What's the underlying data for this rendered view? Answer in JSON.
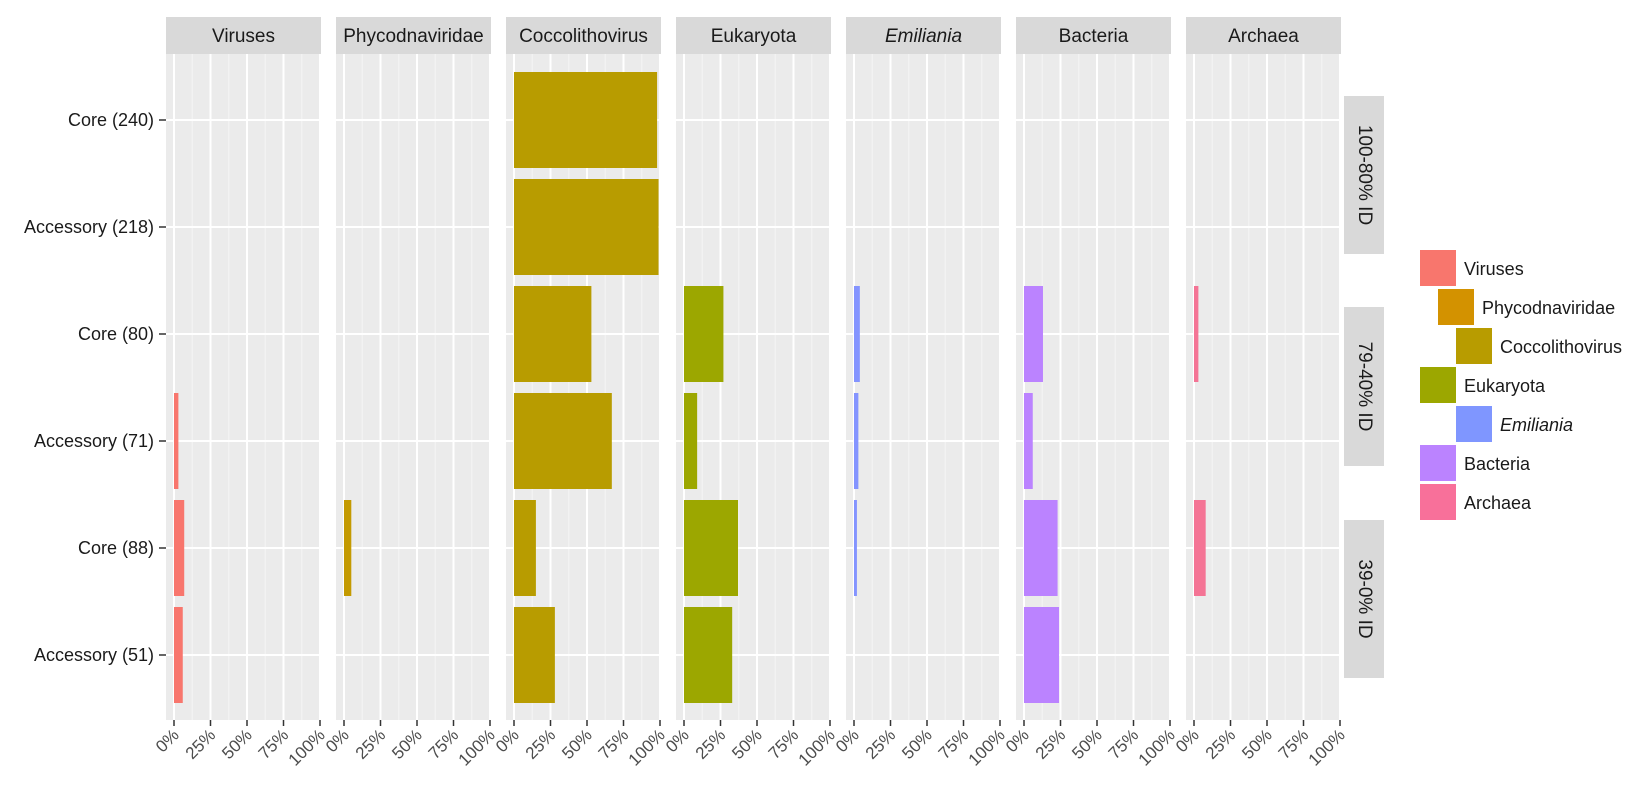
{
  "chart_data": {
    "type": "bar",
    "orientation": "horizontal",
    "facet_columns": [
      {
        "key": "viruses",
        "label": "Viruses",
        "italic": false
      },
      {
        "key": "phyco",
        "label": "Phycodnaviridae",
        "italic": false
      },
      {
        "key": "cocco",
        "label": "Coccolithovirus",
        "italic": false
      },
      {
        "key": "euk",
        "label": "Eukaryota",
        "italic": false
      },
      {
        "key": "emil",
        "label": "Emiliania",
        "italic": true
      },
      {
        "key": "bact",
        "label": "Bacteria",
        "italic": false
      },
      {
        "key": "arch",
        "label": "Archaea",
        "italic": false
      }
    ],
    "facet_rows": [
      {
        "label": "100-80% ID",
        "categories": [
          "Core (240)",
          "Accessory (218)"
        ]
      },
      {
        "label": "79-40% ID",
        "categories": [
          "Core (80)",
          "Accessory (71)"
        ]
      },
      {
        "label": "39-0% ID",
        "categories": [
          "Core (88)",
          "Accessory (51)"
        ]
      }
    ],
    "categories": [
      "Core (240)",
      "Accessory (218)",
      "Core (80)",
      "Accessory (71)",
      "Core (88)",
      "Accessory (51)"
    ],
    "x_ticks": [
      "0%",
      "25%",
      "50%",
      "75%",
      "100%"
    ],
    "xlim": [
      0,
      100
    ],
    "units": "%",
    "series": [
      {
        "name": "Viruses",
        "color": "#F8766D",
        "values": [
          0,
          0,
          0,
          3,
          7,
          6
        ]
      },
      {
        "name": "Phycodnaviridae",
        "color": "#C49A00",
        "values": [
          0,
          0,
          0,
          0,
          5,
          0
        ]
      },
      {
        "name": "Coccolithovirus",
        "color": "#B89C00",
        "values": [
          98,
          99,
          53,
          67,
          15,
          28
        ]
      },
      {
        "name": "Eukaryota",
        "color": "#9CA700",
        "values": [
          0,
          0,
          27,
          9,
          37,
          33
        ]
      },
      {
        "name": "Emiliania",
        "color": "#8494FF",
        "values": [
          0,
          0,
          4,
          3,
          2,
          0
        ]
      },
      {
        "name": "Bacteria",
        "color": "#BB83FF",
        "values": [
          0,
          0,
          13,
          6,
          23,
          24
        ]
      },
      {
        "name": "Archaea",
        "color": "#F47495",
        "values": [
          0,
          0,
          3,
          0,
          8,
          0
        ]
      }
    ],
    "legend": {
      "position": "right",
      "items": [
        {
          "label": "Viruses",
          "color": "#F8766D",
          "italic": false
        },
        {
          "label": "Phycodnaviridae",
          "color": "#D39200",
          "italic": false
        },
        {
          "label": "Coccolithovirus",
          "color": "#B89C00",
          "italic": false
        },
        {
          "label": "Eukaryota",
          "color": "#9CA700",
          "italic": false
        },
        {
          "label": "Emiliania",
          "color": "#7F96FF",
          "italic": true
        },
        {
          "label": "Bacteria",
          "color": "#BB83FF",
          "italic": false
        },
        {
          "label": "Archaea",
          "color": "#F8709A",
          "italic": false
        }
      ]
    },
    "grid": true,
    "panel_background": "#EBEBEB",
    "strip_background": "#D9D9D9"
  }
}
